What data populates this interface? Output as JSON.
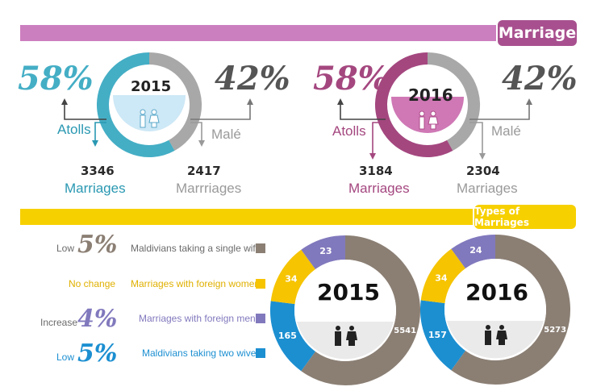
{
  "header": {
    "title": "Marriage",
    "types_title": "Types of Marriages"
  },
  "colors": {
    "pink_band": "#cc7fbf",
    "marriage_tag": "#a8508f",
    "yellow": "#f7d000",
    "teal": "#44aec5",
    "teal_dark": "#2a98b2",
    "grey": "#a8a8a8",
    "grey_text": "#9a9a9a",
    "plum": "#a4477f",
    "brown": "#8b7f74",
    "orange_yellow": "#f6c400",
    "purple": "#8179bd",
    "blue": "#1c8fd1"
  },
  "chart_data": [
    {
      "type": "pie",
      "title": "2015",
      "categories": [
        "Atolls",
        "Malé"
      ],
      "percent_labels": [
        "58%",
        "42%"
      ],
      "values": [
        3346,
        2417
      ],
      "value_labels": [
        "3346",
        "2417"
      ],
      "unit_labels": [
        "Marriages",
        "Marrriages"
      ]
    },
    {
      "type": "pie",
      "title": "2016",
      "categories": [
        "Atolls",
        "Malé"
      ],
      "percent_labels": [
        "58%",
        "42%"
      ],
      "values": [
        3184,
        2304
      ],
      "value_labels": [
        "3184",
        "2304"
      ],
      "unit_labels": [
        "Marriages",
        "Marriages"
      ]
    },
    {
      "type": "pie",
      "title": "2015",
      "categories": [
        "Maldivians taking a single wife",
        "Marriages with foreign women",
        "Marriages with foreign men",
        "Maldivians taking two wives"
      ],
      "values": [
        5541,
        34,
        23,
        165
      ],
      "value_labels": [
        "5541",
        "34",
        "23",
        "165"
      ]
    },
    {
      "type": "pie",
      "title": "2016",
      "categories": [
        "Maldivians taking a single wife",
        "Marriages with foreign women",
        "Marriages with foreign men",
        "Maldivians taking two wives"
      ],
      "values": [
        5273,
        34,
        24,
        157
      ],
      "value_labels": [
        "5273",
        "34",
        "24",
        "157"
      ]
    }
  ],
  "legend": [
    {
      "change_word": "Low",
      "change_pct": "5%",
      "label": "Maldivians taking a single wife"
    },
    {
      "change_word": "No change",
      "change_pct": "",
      "label": "Marriages with foreign women"
    },
    {
      "change_word": "Increase",
      "change_pct": "4%",
      "label": "Marriages with foreign men"
    },
    {
      "change_word": "Low",
      "change_pct": "5%",
      "label": "Maldivians taking two wives"
    }
  ]
}
